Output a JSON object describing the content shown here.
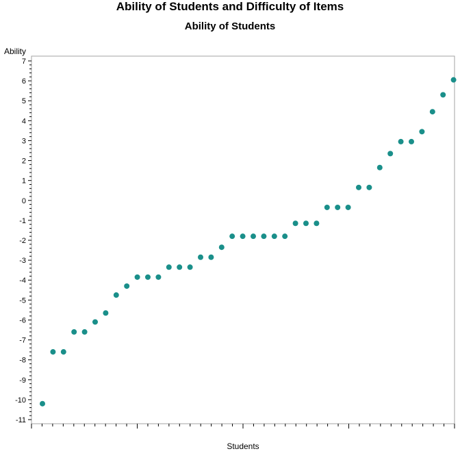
{
  "page": {
    "title": "Ability of Students and Difficulty of Items",
    "subtitle": "Ability of Students"
  },
  "chart_data": {
    "type": "scatter",
    "title": "Ability of Students and Difficulty of Items",
    "subtitle": "Ability of Students",
    "xlabel": "Students",
    "ylabel": "Ability",
    "ylim": [
      -11,
      7
    ],
    "yticks": [
      7,
      6,
      5,
      4,
      3,
      2,
      1,
      0,
      -1,
      -2,
      -3,
      -4,
      -5,
      -6,
      -7,
      -8,
      -9,
      -10,
      -11
    ],
    "xlim": [
      0,
      40
    ],
    "grid": false,
    "legend": "none",
    "marker_color": "#1a8f8a",
    "series": [
      {
        "x": [
          1,
          2,
          3,
          4,
          5,
          6,
          7,
          8,
          9,
          10,
          11,
          12,
          13,
          14,
          15,
          16,
          17,
          18,
          19,
          20,
          21,
          22,
          23,
          24,
          25,
          26,
          27,
          28,
          29,
          30,
          31,
          32,
          33,
          34,
          35,
          36,
          37,
          38,
          39,
          40
        ],
        "values": [
          -10.2,
          -7.6,
          -7.6,
          -6.6,
          -6.6,
          -6.1,
          -5.65,
          -4.75,
          -4.3,
          -3.85,
          -3.85,
          -3.85,
          -3.35,
          -3.35,
          -3.35,
          -2.85,
          -2.85,
          -2.35,
          -1.8,
          -1.8,
          -1.8,
          -1.8,
          -1.8,
          -1.8,
          -1.15,
          -1.15,
          -1.15,
          -0.35,
          -0.35,
          -0.35,
          0.65,
          0.65,
          1.65,
          2.35,
          2.95,
          2.95,
          3.45,
          4.45,
          5.3,
          6.05
        ]
      }
    ]
  }
}
